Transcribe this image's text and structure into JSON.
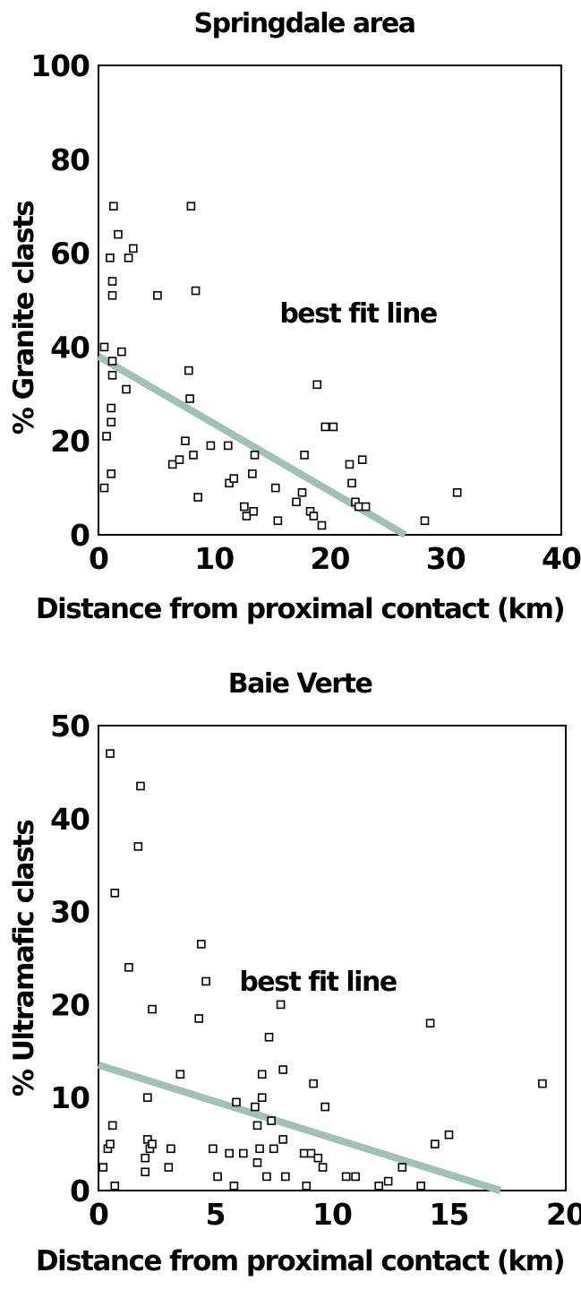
{
  "chart_data": [
    {
      "type": "scatter",
      "title": "Springdale area",
      "xlabel": "Distance from proximal contact (km)",
      "ylabel": "% Granite clasts",
      "xlim": [
        0,
        40
      ],
      "ylim": [
        0,
        100
      ],
      "xticks": [
        0,
        10,
        20,
        30,
        40
      ],
      "yticks": [
        0,
        20,
        40,
        60,
        80,
        100
      ],
      "annotation": "best fit line",
      "fit_line": {
        "x": [
          0,
          26.5
        ],
        "y": [
          38,
          0
        ],
        "color": "#9fc1b6"
      },
      "points": [
        [
          0.5,
          10
        ],
        [
          0.7,
          21
        ],
        [
          0.5,
          40
        ],
        [
          1.0,
          59
        ],
        [
          1.2,
          54
        ],
        [
          1.2,
          51
        ],
        [
          1.3,
          70
        ],
        [
          1.2,
          37
        ],
        [
          1.2,
          34
        ],
        [
          1.1,
          27
        ],
        [
          1.1,
          24
        ],
        [
          1.1,
          13
        ],
        [
          1.7,
          64
        ],
        [
          2.0,
          39
        ],
        [
          2.4,
          31
        ],
        [
          2.6,
          59
        ],
        [
          3.0,
          61
        ],
        [
          5.1,
          51
        ],
        [
          6.4,
          15
        ],
        [
          7.0,
          16
        ],
        [
          7.5,
          20
        ],
        [
          7.8,
          35
        ],
        [
          7.9,
          29
        ],
        [
          8.0,
          70
        ],
        [
          8.2,
          17
        ],
        [
          8.4,
          52
        ],
        [
          8.6,
          8
        ],
        [
          9.7,
          19
        ],
        [
          11.2,
          19
        ],
        [
          11.3,
          11
        ],
        [
          11.7,
          12
        ],
        [
          12.6,
          6
        ],
        [
          12.8,
          4
        ],
        [
          13.3,
          13
        ],
        [
          13.4,
          5
        ],
        [
          13.5,
          17
        ],
        [
          15.3,
          10
        ],
        [
          15.5,
          3
        ],
        [
          17.1,
          7
        ],
        [
          17.6,
          9
        ],
        [
          17.8,
          17
        ],
        [
          18.3,
          5
        ],
        [
          18.6,
          4
        ],
        [
          18.9,
          32
        ],
        [
          19.3,
          2
        ],
        [
          19.6,
          23
        ],
        [
          20.3,
          23
        ],
        [
          21.7,
          15
        ],
        [
          21.9,
          11
        ],
        [
          22.2,
          7
        ],
        [
          22.5,
          6
        ],
        [
          22.8,
          16
        ],
        [
          23.1,
          6
        ],
        [
          28.2,
          3
        ],
        [
          31.0,
          9
        ]
      ]
    },
    {
      "type": "scatter",
      "title": "Baie Verte",
      "xlabel": "Distance from proximal contact (km)",
      "ylabel": "% Ultramafic clasts",
      "xlim": [
        0,
        20
      ],
      "ylim": [
        0,
        50
      ],
      "xticks": [
        0,
        5,
        10,
        15,
        20
      ],
      "yticks": [
        0,
        10,
        20,
        30,
        40,
        50
      ],
      "annotation": "best fit line",
      "fit_line": {
        "x": [
          0,
          17.2
        ],
        "y": [
          13.5,
          0
        ],
        "color": "#9fc1b6"
      },
      "points": [
        [
          0.2,
          2.5
        ],
        [
          0.4,
          4.5
        ],
        [
          0.5,
          5
        ],
        [
          0.5,
          47
        ],
        [
          0.6,
          7
        ],
        [
          0.7,
          32
        ],
        [
          0.7,
          0.5
        ],
        [
          1.3,
          24
        ],
        [
          1.7,
          37
        ],
        [
          1.8,
          43.5
        ],
        [
          2.0,
          2
        ],
        [
          2.0,
          3.5
        ],
        [
          2.1,
          10
        ],
        [
          2.1,
          5.5
        ],
        [
          2.2,
          4.5
        ],
        [
          2.3,
          19.5
        ],
        [
          2.3,
          5
        ],
        [
          3.0,
          2.5
        ],
        [
          3.1,
          4.5
        ],
        [
          3.5,
          12.5
        ],
        [
          4.3,
          18.5
        ],
        [
          4.4,
          26.5
        ],
        [
          4.6,
          22.5
        ],
        [
          4.9,
          4.5
        ],
        [
          5.1,
          1.5
        ],
        [
          5.6,
          4
        ],
        [
          5.8,
          0.5
        ],
        [
          5.9,
          9.5
        ],
        [
          6.2,
          4
        ],
        [
          6.7,
          9
        ],
        [
          6.8,
          3
        ],
        [
          6.8,
          7
        ],
        [
          6.9,
          4.5
        ],
        [
          7.0,
          10
        ],
        [
          7.0,
          12.5
        ],
        [
          7.2,
          1.5
        ],
        [
          7.3,
          16.5
        ],
        [
          7.4,
          7.5
        ],
        [
          7.5,
          4.5
        ],
        [
          7.8,
          20
        ],
        [
          7.9,
          5.5
        ],
        [
          7.9,
          13
        ],
        [
          8.0,
          1.5
        ],
        [
          8.8,
          4
        ],
        [
          8.9,
          0.5
        ],
        [
          9.1,
          4
        ],
        [
          9.2,
          11.5
        ],
        [
          9.4,
          3.5
        ],
        [
          9.6,
          2.5
        ],
        [
          9.7,
          9
        ],
        [
          10.6,
          1.5
        ],
        [
          11.0,
          1.5
        ],
        [
          12.0,
          0.5
        ],
        [
          12.4,
          1
        ],
        [
          13.0,
          2.5
        ],
        [
          13.8,
          0.5
        ],
        [
          14.2,
          18
        ],
        [
          14.4,
          5
        ],
        [
          15.0,
          6
        ],
        [
          19.0,
          11.5
        ]
      ]
    }
  ]
}
